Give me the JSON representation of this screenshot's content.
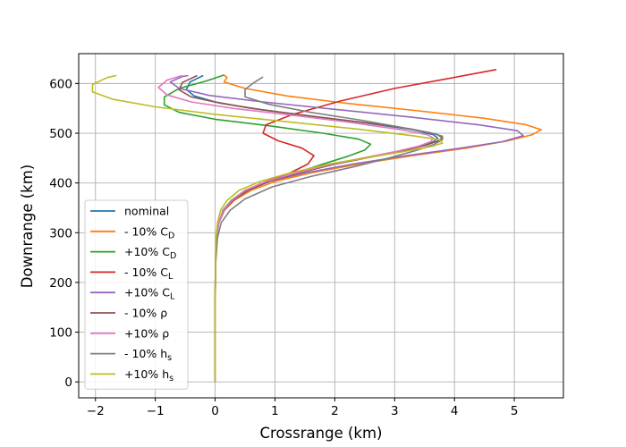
{
  "chart_data": {
    "type": "line",
    "title": "",
    "xlabel": "Crossrange (km)",
    "ylabel": "Downrange (km)",
    "xlim": [
      -2.28,
      5.82
    ],
    "ylim": [
      -32,
      660
    ],
    "xticks": [
      -2,
      -1,
      0,
      1,
      2,
      3,
      4,
      5
    ],
    "yticks": [
      0,
      100,
      200,
      300,
      400,
      500,
      600
    ],
    "xtick_labels": [
      "−2",
      "−1",
      "0",
      "1",
      "2",
      "3",
      "4",
      "5"
    ],
    "ytick_labels": [
      "0",
      "100",
      "200",
      "300",
      "400",
      "500",
      "600"
    ],
    "grid": true,
    "legend_position": "lower-left",
    "series": [
      {
        "name": "nominal",
        "label_main": "nominal",
        "label_sub": "",
        "color": "#1f77b4",
        "points": [
          [
            0,
            0
          ],
          [
            0,
            150
          ],
          [
            0.005,
            240
          ],
          [
            0.02,
            290
          ],
          [
            0.06,
            320
          ],
          [
            0.15,
            345
          ],
          [
            0.3,
            365
          ],
          [
            0.55,
            385
          ],
          [
            0.9,
            403
          ],
          [
            1.4,
            420
          ],
          [
            2.0,
            438
          ],
          [
            2.6,
            452
          ],
          [
            3.1,
            465
          ],
          [
            3.45,
            475
          ],
          [
            3.65,
            483
          ],
          [
            3.72,
            490
          ],
          [
            3.65,
            497
          ],
          [
            3.3,
            507
          ],
          [
            2.5,
            521
          ],
          [
            1.5,
            536
          ],
          [
            0.6,
            550
          ],
          [
            0,
            563
          ],
          [
            -0.35,
            575
          ],
          [
            -0.48,
            588
          ],
          [
            -0.42,
            603
          ],
          [
            -0.2,
            616
          ]
        ]
      },
      {
        "name": "- 10% C_D",
        "label_main": "- 10% C",
        "label_sub": "D",
        "color": "#ff7f0e",
        "points": [
          [
            0,
            0
          ],
          [
            0,
            150
          ],
          [
            0.005,
            240
          ],
          [
            0.02,
            290
          ],
          [
            0.06,
            320
          ],
          [
            0.15,
            345
          ],
          [
            0.32,
            365
          ],
          [
            0.6,
            385
          ],
          [
            1.0,
            403
          ],
          [
            1.6,
            420
          ],
          [
            2.4,
            438
          ],
          [
            3.3,
            455
          ],
          [
            4.2,
            470
          ],
          [
            4.9,
            485
          ],
          [
            5.3,
            497
          ],
          [
            5.45,
            507
          ],
          [
            5.2,
            517
          ],
          [
            4.5,
            530
          ],
          [
            3.4,
            545
          ],
          [
            2.2,
            560
          ],
          [
            1.2,
            575
          ],
          [
            0.5,
            590
          ],
          [
            0.15,
            603
          ],
          [
            0.2,
            612
          ],
          [
            0.15,
            617
          ]
        ]
      },
      {
        "name": "+10% C_D",
        "label_main": "+10% C",
        "label_sub": "D",
        "color": "#2ca02c",
        "points": [
          [
            0,
            0
          ],
          [
            0,
            150
          ],
          [
            0.005,
            240
          ],
          [
            0.02,
            290
          ],
          [
            0.06,
            320
          ],
          [
            0.13,
            345
          ],
          [
            0.27,
            365
          ],
          [
            0.5,
            385
          ],
          [
            0.9,
            403
          ],
          [
            1.35,
            420
          ],
          [
            1.8,
            438
          ],
          [
            2.2,
            453
          ],
          [
            2.5,
            466
          ],
          [
            2.6,
            478
          ],
          [
            2.4,
            488
          ],
          [
            1.8,
            500
          ],
          [
            0.9,
            515
          ],
          [
            0,
            528
          ],
          [
            -0.6,
            542
          ],
          [
            -0.85,
            557
          ],
          [
            -0.85,
            573
          ],
          [
            -0.6,
            590
          ],
          [
            -0.15,
            605
          ],
          [
            0.15,
            617
          ]
        ]
      },
      {
        "name": "- 10% C_L",
        "label_main": "- 10% C",
        "label_sub": "L",
        "color": "#d62728",
        "points": [
          [
            0,
            0
          ],
          [
            0,
            150
          ],
          [
            0.005,
            240
          ],
          [
            0.02,
            290
          ],
          [
            0.06,
            320
          ],
          [
            0.15,
            345
          ],
          [
            0.3,
            365
          ],
          [
            0.5,
            385
          ],
          [
            0.85,
            403
          ],
          [
            1.25,
            420
          ],
          [
            1.55,
            438
          ],
          [
            1.65,
            455
          ],
          [
            1.45,
            470
          ],
          [
            1.05,
            485
          ],
          [
            0.8,
            500
          ],
          [
            0.85,
            517
          ],
          [
            1.3,
            538
          ],
          [
            2.1,
            565
          ],
          [
            3.0,
            590
          ],
          [
            3.9,
            610
          ],
          [
            4.7,
            628
          ]
        ]
      },
      {
        "name": "+10% C_L",
        "label_main": "+10% C",
        "label_sub": "L",
        "color": "#9467bd",
        "points": [
          [
            0,
            0
          ],
          [
            0,
            150
          ],
          [
            0.005,
            240
          ],
          [
            0.02,
            290
          ],
          [
            0.06,
            320
          ],
          [
            0.14,
            345
          ],
          [
            0.28,
            365
          ],
          [
            0.5,
            385
          ],
          [
            0.9,
            403
          ],
          [
            1.5,
            420
          ],
          [
            2.3,
            438
          ],
          [
            3.2,
            455
          ],
          [
            4.1,
            470
          ],
          [
            4.8,
            483
          ],
          [
            5.15,
            495
          ],
          [
            5.05,
            505
          ],
          [
            4.4,
            517
          ],
          [
            3.3,
            532
          ],
          [
            2.0,
            548
          ],
          [
            0.8,
            563
          ],
          [
            -0.1,
            576
          ],
          [
            -0.6,
            590
          ],
          [
            -0.75,
            603
          ],
          [
            -0.55,
            614
          ],
          [
            -0.45,
            616
          ]
        ]
      },
      {
        "name": "- 10% ρ",
        "label_main": "- 10% ρ",
        "label_sub": "",
        "color": "#8c564b",
        "points": [
          [
            0,
            0
          ],
          [
            0,
            150
          ],
          [
            0.005,
            240
          ],
          [
            0.02,
            290
          ],
          [
            0.06,
            320
          ],
          [
            0.15,
            345
          ],
          [
            0.3,
            365
          ],
          [
            0.55,
            385
          ],
          [
            0.9,
            403
          ],
          [
            1.4,
            420
          ],
          [
            2.0,
            438
          ],
          [
            2.6,
            452
          ],
          [
            3.15,
            465
          ],
          [
            3.5,
            475
          ],
          [
            3.72,
            484
          ],
          [
            3.8,
            491
          ],
          [
            3.7,
            498
          ],
          [
            3.3,
            508
          ],
          [
            2.6,
            520
          ],
          [
            1.7,
            533
          ],
          [
            0.8,
            547
          ],
          [
            0.1,
            560
          ],
          [
            -0.4,
            573
          ],
          [
            -0.6,
            587
          ],
          [
            -0.55,
            602
          ],
          [
            -0.3,
            616
          ]
        ]
      },
      {
        "name": "+10% ρ",
        "label_main": "+10% ρ",
        "label_sub": "",
        "color": "#e377c2",
        "points": [
          [
            0,
            0
          ],
          [
            0,
            150
          ],
          [
            0.005,
            240
          ],
          [
            0.02,
            290
          ],
          [
            0.06,
            320
          ],
          [
            0.14,
            345
          ],
          [
            0.28,
            365
          ],
          [
            0.5,
            385
          ],
          [
            0.85,
            403
          ],
          [
            1.35,
            420
          ],
          [
            1.95,
            438
          ],
          [
            2.55,
            452
          ],
          [
            3.05,
            464
          ],
          [
            3.4,
            474
          ],
          [
            3.6,
            483
          ],
          [
            3.65,
            490
          ],
          [
            3.55,
            497
          ],
          [
            3.1,
            507
          ],
          [
            2.3,
            521
          ],
          [
            1.3,
            536
          ],
          [
            0.3,
            550
          ],
          [
            -0.4,
            563
          ],
          [
            -0.8,
            577
          ],
          [
            -0.95,
            592
          ],
          [
            -0.8,
            607
          ],
          [
            -0.55,
            616
          ]
        ]
      },
      {
        "name": "- 10% h_s",
        "label_main": "- 10% h",
        "label_sub": "s",
        "color": "#7f7f7f",
        "points": [
          [
            0,
            0
          ],
          [
            0,
            150
          ],
          [
            0.01,
            240
          ],
          [
            0.04,
            290
          ],
          [
            0.1,
            320
          ],
          [
            0.25,
            345
          ],
          [
            0.5,
            368
          ],
          [
            0.95,
            392
          ],
          [
            1.6,
            413
          ],
          [
            2.3,
            432
          ],
          [
            2.9,
            450
          ],
          [
            3.35,
            465
          ],
          [
            3.65,
            477
          ],
          [
            3.8,
            487
          ],
          [
            3.8,
            494
          ],
          [
            3.6,
            501
          ],
          [
            3.1,
            512
          ],
          [
            2.4,
            527
          ],
          [
            1.6,
            542
          ],
          [
            0.9,
            558
          ],
          [
            0.5,
            573
          ],
          [
            0.5,
            588
          ],
          [
            0.65,
            602
          ],
          [
            0.8,
            613
          ]
        ]
      },
      {
        "name": "+10% h_s",
        "label_main": "+10% h",
        "label_sub": "s",
        "color": "#bcbd22",
        "points": [
          [
            0,
            0
          ],
          [
            0,
            150
          ],
          [
            0.003,
            240
          ],
          [
            0.015,
            290
          ],
          [
            0.04,
            320
          ],
          [
            0.09,
            345
          ],
          [
            0.2,
            365
          ],
          [
            0.4,
            385
          ],
          [
            0.75,
            403
          ],
          [
            1.25,
            420
          ],
          [
            1.9,
            438
          ],
          [
            2.6,
            452
          ],
          [
            3.2,
            464
          ],
          [
            3.6,
            473
          ],
          [
            3.8,
            480
          ],
          [
            3.75,
            487
          ],
          [
            3.3,
            495
          ],
          [
            2.4,
            508
          ],
          [
            1.2,
            523
          ],
          [
            0,
            538
          ],
          [
            -1.0,
            553
          ],
          [
            -1.7,
            568
          ],
          [
            -2.05,
            583
          ],
          [
            -2.05,
            598
          ],
          [
            -1.8,
            612
          ],
          [
            -1.65,
            616
          ]
        ]
      }
    ]
  }
}
